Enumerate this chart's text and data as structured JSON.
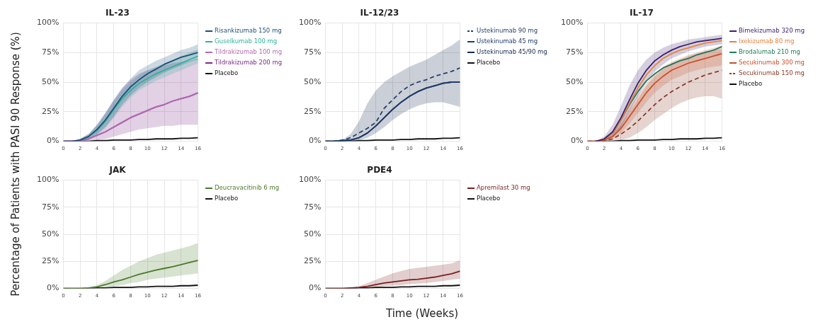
{
  "chart_data": [
    {
      "type": "line",
      "title": "IL-23",
      "ylabel": "Percentage of Patients with PASI 90 Response (%)",
      "x": [
        0,
        1,
        2,
        3,
        4,
        5,
        6,
        7,
        8,
        9,
        10,
        11,
        12,
        13,
        14,
        15,
        16
      ],
      "xlim": [
        0,
        16
      ],
      "xticks": [
        0,
        2,
        4,
        6,
        8,
        10,
        12,
        14,
        16
      ],
      "ylim": [
        0,
        100
      ],
      "yticks": [
        {
          "value": 0,
          "label": "0%"
        },
        {
          "value": 25,
          "label": "25%"
        },
        {
          "value": 50,
          "label": "50%"
        },
        {
          "value": 75,
          "label": "75%"
        },
        {
          "value": 100,
          "label": "100%"
        }
      ],
      "grid": true,
      "legend": "right",
      "marker": "none",
      "series": [
        {
          "name": "Risankizumab 150 mg",
          "color": "#1f4e79",
          "values": [
            0,
            0,
            1,
            4,
            10,
            18,
            28,
            38,
            46,
            52,
            57,
            61,
            65,
            68,
            71,
            73,
            75
          ],
          "lower": [
            0,
            0,
            0,
            2,
            6,
            12,
            21,
            31,
            39,
            45,
            50,
            54,
            58,
            61,
            64,
            67,
            69
          ],
          "upper": [
            0,
            0,
            2,
            6,
            14,
            24,
            35,
            45,
            53,
            60,
            64,
            68,
            71,
            74,
            77,
            79,
            82
          ]
        },
        {
          "name": "Guselkumab 100 mg",
          "color": "#2bb39a",
          "values": [
            null,
            null,
            1,
            4,
            9,
            17,
            27,
            36,
            43,
            49,
            53,
            57,
            60,
            63,
            66,
            69,
            72
          ],
          "lower": [
            0,
            0,
            0,
            2,
            5,
            11,
            20,
            29,
            37,
            43,
            47,
            51,
            54,
            57,
            60,
            63,
            66
          ],
          "upper": [
            0,
            0,
            2,
            6,
            13,
            23,
            34,
            43,
            50,
            56,
            60,
            63,
            66,
            69,
            72,
            75,
            78
          ]
        },
        {
          "name": "Tildrakizumab 100 mg",
          "color": "#b36bb3",
          "values": [
            0,
            0,
            0.5,
            2,
            5,
            8,
            12,
            16,
            20,
            23,
            26,
            29,
            31,
            34,
            36,
            38,
            41
          ]
        },
        {
          "name": "Tildrakizumab 200 mg",
          "color": "#7b2a8a",
          "values": [
            0,
            0,
            0.5,
            2,
            5,
            8,
            12,
            16,
            20,
            23,
            26,
            29,
            31,
            34,
            36,
            38,
            41
          ],
          "lower": [
            0,
            0,
            0,
            0,
            1,
            2,
            4,
            6,
            8,
            10,
            11,
            12,
            13,
            13,
            14,
            14,
            14
          ],
          "upper": [
            0,
            0,
            2,
            6,
            14,
            24,
            35,
            45,
            52,
            57,
            60,
            62,
            64,
            66,
            67,
            68,
            70
          ]
        },
        {
          "name": "Placebo",
          "color": "#111111",
          "values": [
            0,
            0,
            0,
            0,
            0.5,
            0.5,
            1,
            1,
            1,
            1.5,
            1.5,
            2,
            2,
            2,
            2.5,
            2.5,
            3
          ]
        }
      ]
    },
    {
      "type": "line",
      "title": "IL-12/23",
      "x": [
        0,
        1,
        2,
        3,
        4,
        5,
        6,
        7,
        8,
        9,
        10,
        11,
        12,
        13,
        14,
        15,
        16
      ],
      "xlim": [
        0,
        16
      ],
      "xticks": [
        0,
        2,
        4,
        6,
        8,
        10,
        12,
        14,
        16
      ],
      "ylim": [
        0,
        100
      ],
      "yticks": [
        {
          "value": 0,
          "label": "0%"
        },
        {
          "value": 25,
          "label": "25%"
        },
        {
          "value": 50,
          "label": "50%"
        },
        {
          "value": 75,
          "label": "75%"
        },
        {
          "value": 100,
          "label": "100%"
        }
      ],
      "grid": true,
      "legend": "right",
      "marker": "none",
      "series": [
        {
          "name": "Ustekinumab 90 mg",
          "color": "#2a3f66",
          "line_style": "dashed",
          "values": [
            0,
            0,
            1,
            3,
            7,
            11,
            16,
            28,
            35,
            42,
            47,
            50,
            52,
            55,
            57,
            59,
            62
          ]
        },
        {
          "name": "Ustekinumab 45 mg",
          "color": "#1f3a6b",
          "values": [
            0,
            0,
            0.5,
            1,
            3,
            7,
            13,
            20,
            27,
            33,
            38,
            42,
            45,
            47,
            49,
            50,
            50
          ]
        },
        {
          "name": "Ustekinumab 45/90 mg",
          "color": "#14284f",
          "values": [
            0,
            0,
            0.5,
            1,
            3,
            7,
            13,
            20,
            27,
            33,
            38,
            42,
            45,
            47,
            49,
            50,
            50
          ],
          "lower": [
            0,
            0,
            0,
            0,
            1,
            3,
            7,
            12,
            18,
            23,
            27,
            30,
            32,
            33,
            33,
            31,
            29
          ],
          "upper": [
            0,
            0,
            1,
            6,
            17,
            32,
            43,
            50,
            55,
            59,
            63,
            66,
            69,
            73,
            77,
            81,
            86
          ]
        },
        {
          "name": "Placebo",
          "color": "#111111",
          "values": [
            0,
            0,
            0,
            0,
            0.5,
            0.5,
            1,
            1,
            1,
            1.5,
            1.5,
            2,
            2,
            2,
            2.5,
            2.5,
            3
          ]
        }
      ]
    },
    {
      "type": "line",
      "title": "IL-17",
      "x": [
        0,
        1,
        2,
        3,
        4,
        5,
        6,
        7,
        8,
        9,
        10,
        11,
        12,
        13,
        14,
        15,
        16
      ],
      "xlim": [
        0,
        16
      ],
      "xticks": [
        0,
        2,
        4,
        6,
        8,
        10,
        12,
        14,
        16
      ],
      "ylim": [
        0,
        100
      ],
      "yticks": [
        {
          "value": 0,
          "label": "0%"
        },
        {
          "value": 25,
          "label": "25%"
        },
        {
          "value": 50,
          "label": "50%"
        },
        {
          "value": 75,
          "label": "75%"
        },
        {
          "value": 100,
          "label": "100%"
        }
      ],
      "grid": true,
      "legend": "right",
      "marker": "none",
      "series": [
        {
          "name": "Bimekizumab 320 mg",
          "color": "#3b1f6e",
          "values": [
            null,
            0,
            2,
            8,
            20,
            35,
            49,
            60,
            68,
            73,
            77,
            80,
            82,
            84,
            85,
            86,
            87
          ],
          "lower": [
            0,
            0,
            1,
            4,
            12,
            25,
            38,
            50,
            59,
            65,
            70,
            73,
            76,
            78,
            80,
            81,
            82
          ],
          "upper": [
            0,
            0,
            4,
            14,
            30,
            47,
            60,
            69,
            75,
            79,
            82,
            84,
            86,
            87,
            88,
            89,
            90
          ]
        },
        {
          "name": "Ixekizumab 80 mg",
          "color": "#e8823a",
          "values": [
            null,
            null,
            2,
            7,
            18,
            32,
            45,
            56,
            64,
            70,
            74,
            77,
            79,
            81,
            83,
            84,
            85
          ]
        },
        {
          "name": "Brodalumab 210 mg",
          "color": "#1f7a5a",
          "values": [
            null,
            null,
            null,
            7,
            18,
            31,
            42,
            51,
            57,
            62,
            65,
            68,
            70,
            73,
            75,
            77,
            80
          ]
        },
        {
          "name": "Secukinumab 300 mg",
          "color": "#c8502a",
          "values": [
            0,
            0,
            1,
            4,
            11,
            21,
            31,
            41,
            49,
            55,
            60,
            63,
            66,
            68,
            70,
            72,
            74
          ],
          "lower": [
            0,
            0,
            0,
            2,
            7,
            15,
            24,
            33,
            41,
            47,
            52,
            55,
            58,
            60,
            62,
            63,
            64
          ],
          "upper": [
            0,
            0,
            2,
            7,
            16,
            28,
            39,
            49,
            57,
            63,
            67,
            70,
            73,
            75,
            77,
            79,
            81
          ]
        },
        {
          "name": "Secukinumab 150 mg",
          "color": "#8b3a2a",
          "line_style": "dashed",
          "values": [
            0,
            0,
            0.5,
            2,
            6,
            11,
            17,
            24,
            31,
            37,
            42,
            46,
            50,
            53,
            56,
            58,
            60
          ],
          "lower": [
            0,
            0,
            0,
            0,
            1,
            3,
            7,
            12,
            18,
            23,
            28,
            32,
            35,
            37,
            38,
            38,
            36
          ],
          "upper": [
            0,
            0,
            2,
            6,
            14,
            25,
            36,
            47,
            55,
            61,
            66,
            69,
            72,
            74,
            76,
            77,
            78
          ]
        },
        {
          "name": "Placebo",
          "color": "#111111",
          "values": [
            0,
            0,
            0,
            0,
            0.5,
            0.5,
            1,
            1,
            1,
            1.5,
            1.5,
            2,
            2,
            2,
            2.5,
            2.5,
            3
          ]
        }
      ]
    },
    {
      "type": "line",
      "title": "JAK",
      "x": [
        0,
        1,
        2,
        3,
        4,
        5,
        6,
        7,
        8,
        9,
        10,
        11,
        12,
        13,
        14,
        15,
        16
      ],
      "xlim": [
        0,
        16
      ],
      "xticks": [
        0,
        2,
        4,
        6,
        8,
        10,
        12,
        14,
        16
      ],
      "ylim": [
        0,
        100
      ],
      "yticks": [
        {
          "value": 0,
          "label": "0%"
        },
        {
          "value": 25,
          "label": "25%"
        },
        {
          "value": 50,
          "label": "50%"
        },
        {
          "value": 75,
          "label": "75%"
        },
        {
          "value": 100,
          "label": "100%"
        }
      ],
      "grid": true,
      "legend": "right",
      "marker": "none",
      "series": [
        {
          "name": "Deucravacitinib 6 mg",
          "color": "#4a7a2a",
          "values": [
            0,
            0,
            0,
            0.5,
            1.5,
            3.5,
            6,
            8,
            10.5,
            13,
            15,
            17,
            18.5,
            20,
            22,
            24,
            26
          ],
          "lower": [
            0,
            0,
            0,
            0,
            0,
            1,
            2,
            3,
            5,
            6,
            8,
            9,
            10,
            11,
            12,
            13,
            14
          ],
          "upper": [
            0,
            0,
            0,
            1,
            3,
            7,
            12,
            17,
            21,
            25,
            28,
            31,
            33,
            35,
            37,
            39,
            42
          ]
        },
        {
          "name": "Placebo",
          "color": "#111111",
          "values": [
            0,
            0,
            0,
            0,
            0.5,
            0.5,
            1,
            1,
            1,
            1.5,
            1.5,
            2,
            2,
            2,
            2.5,
            2.5,
            3
          ]
        }
      ]
    },
    {
      "type": "line",
      "title": "PDE4",
      "xlabel": "Time (Weeks)",
      "x": [
        0,
        1,
        2,
        3,
        4,
        5,
        6,
        7,
        8,
        9,
        10,
        11,
        12,
        13,
        14,
        15,
        16
      ],
      "xlim": [
        0,
        16
      ],
      "xticks": [
        0,
        2,
        4,
        6,
        8,
        10,
        12,
        14,
        16
      ],
      "ylim": [
        0,
        100
      ],
      "yticks": [
        {
          "value": 0,
          "label": "0%"
        },
        {
          "value": 25,
          "label": "25%"
        },
        {
          "value": 50,
          "label": "50%"
        },
        {
          "value": 75,
          "label": "75%"
        },
        {
          "value": 100,
          "label": "100%"
        }
      ],
      "grid": true,
      "legend": "right",
      "marker": "none",
      "series": [
        {
          "name": "Apremilast 30 mg",
          "color": "#7a1f1f",
          "values": [
            0,
            0,
            0,
            0.5,
            1,
            2,
            3.5,
            5,
            6,
            7,
            8,
            8.5,
            9.5,
            10.5,
            12,
            13.5,
            16
          ],
          "lower": [
            0,
            0,
            0,
            0,
            0,
            0.5,
            1,
            2,
            2.5,
            3,
            4,
            4.5,
            5,
            6,
            7,
            8,
            9
          ],
          "upper": [
            0,
            0,
            0,
            0.5,
            2,
            5,
            8,
            11,
            14,
            16,
            18,
            19,
            20,
            21,
            22,
            23,
            26
          ]
        },
        {
          "name": "Placebo",
          "color": "#111111",
          "values": [
            0,
            0,
            0,
            0,
            0.5,
            0.5,
            1,
            1,
            1,
            1.5,
            1.5,
            2,
            2,
            2,
            2.5,
            2.5,
            3
          ]
        }
      ]
    }
  ]
}
